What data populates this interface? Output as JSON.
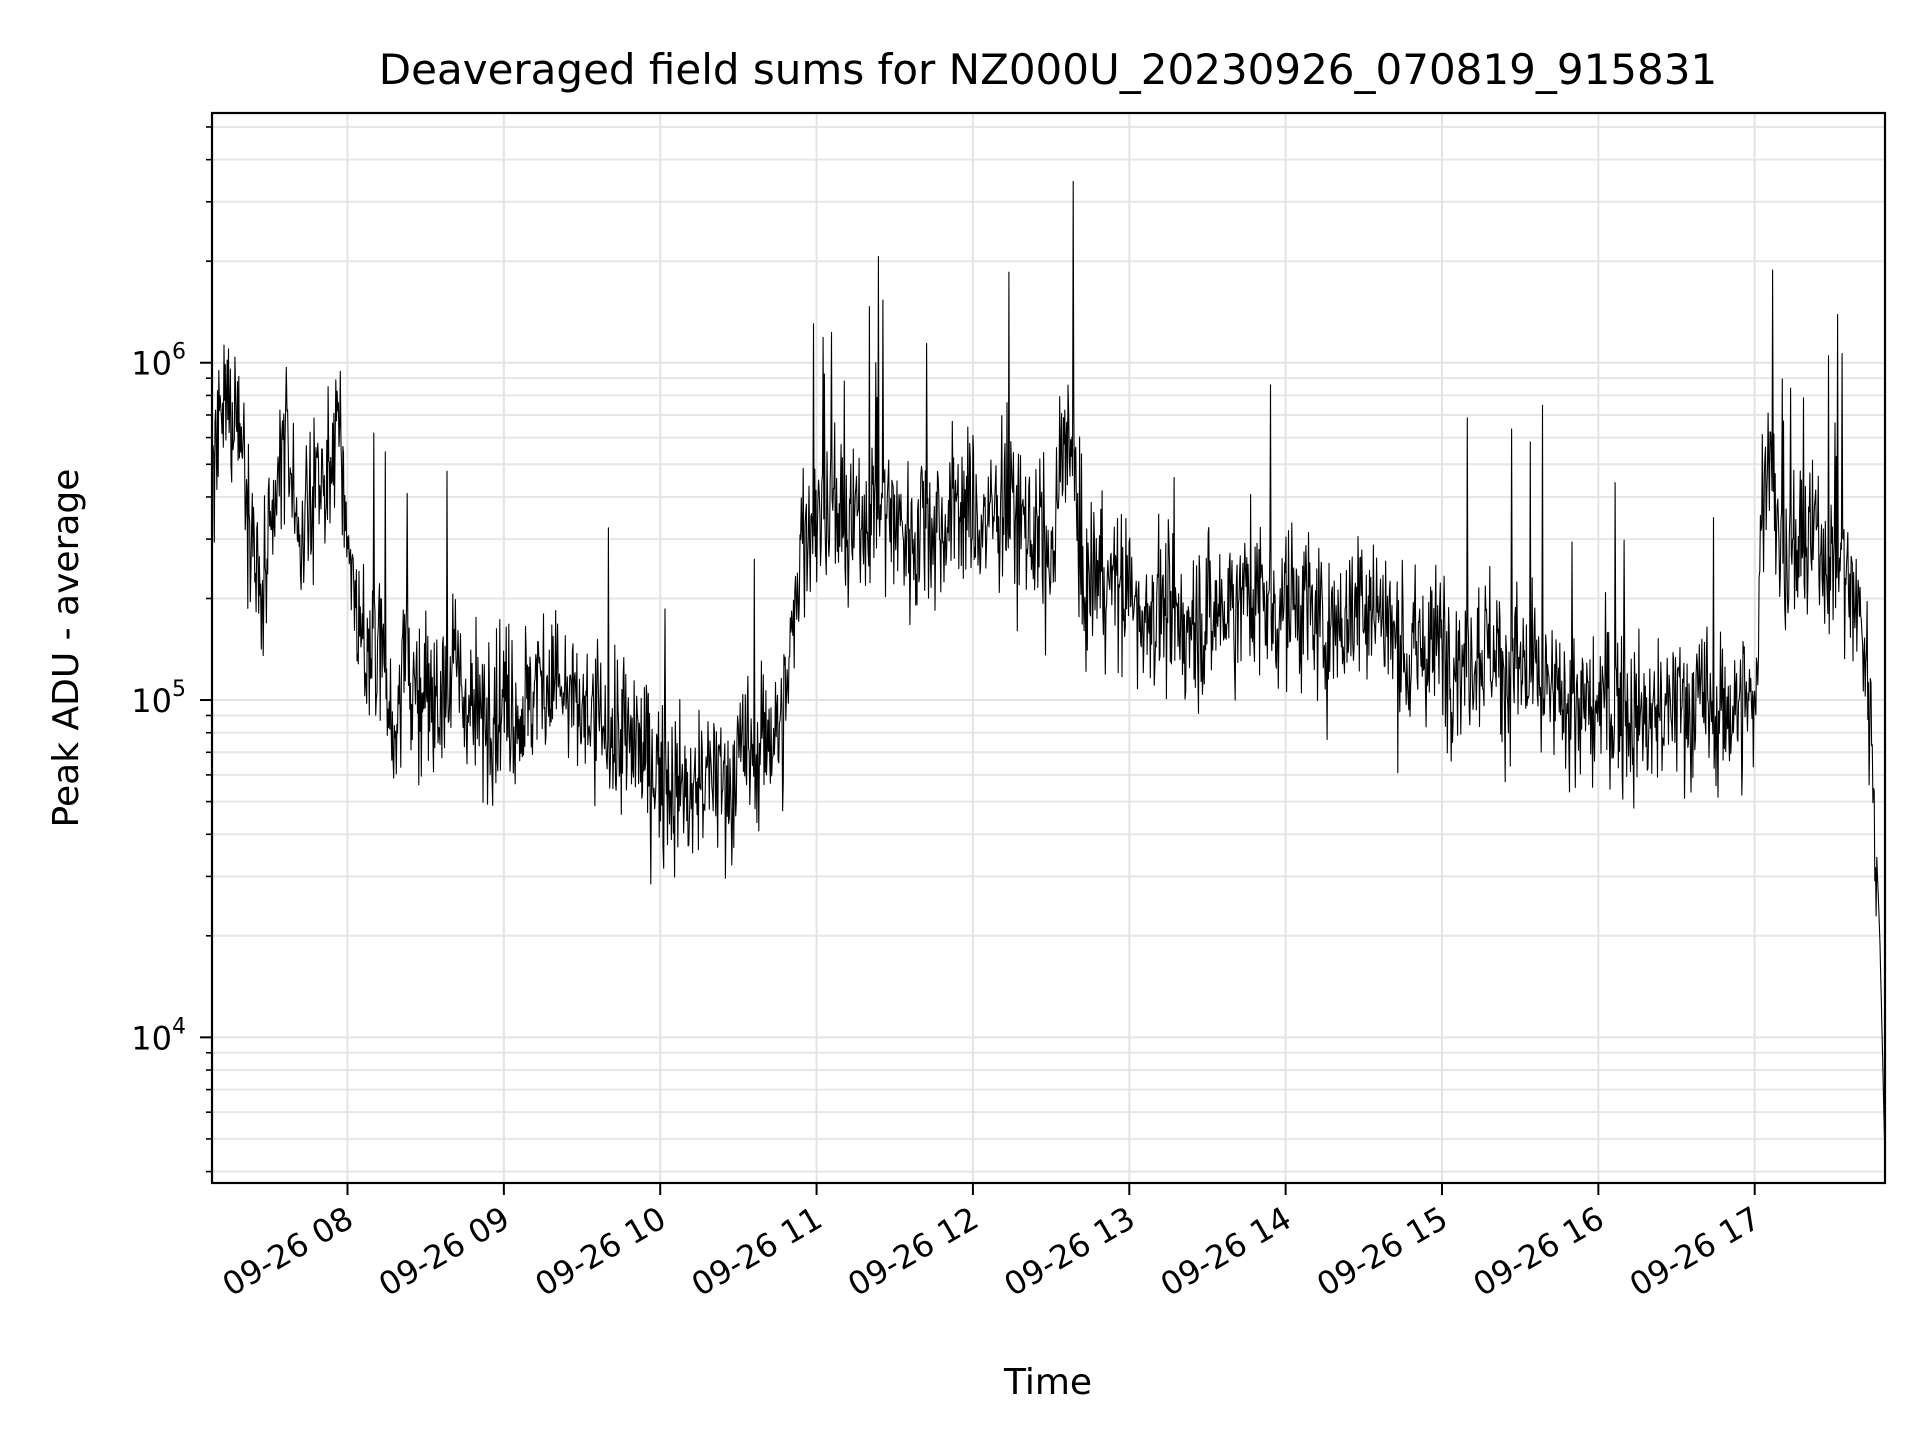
{
  "chart_data": {
    "type": "line",
    "title": "Deaveraged field sums for NZ000U_20230926_070819_915831",
    "xlabel": "Time",
    "ylabel": "Peak ADU - average",
    "yscale": "log",
    "grid": "on (major and minor)",
    "xlim": [
      "09-26 07:08",
      "09-26 17:50"
    ],
    "ylim": [
      3700,
      5500000
    ],
    "x_ticks": [
      "09-26 08",
      "09-26 09",
      "09-26 10",
      "09-26 11",
      "09-26 12",
      "09-26 13",
      "09-26 14",
      "09-26 15",
      "09-26 16",
      "09-26 17"
    ],
    "x_tick_hours": [
      8,
      9,
      10,
      11,
      12,
      13,
      14,
      15,
      16,
      17
    ],
    "y_ticks": [
      {
        "base": "10",
        "exp": "4",
        "value": 10000
      },
      {
        "base": "10",
        "exp": "5",
        "value": 100000
      },
      {
        "base": "10",
        "exp": "6",
        "value": 1000000
      }
    ],
    "series": [
      {
        "color": "#000000",
        "x_hours": [
          7.14,
          7.2,
          7.25,
          7.3,
          7.35,
          7.4,
          7.45,
          7.5,
          7.55,
          7.6,
          7.65,
          7.7,
          7.75,
          7.8,
          7.85,
          7.9,
          7.95,
          8.0,
          8.05,
          8.1,
          8.15,
          8.2,
          8.25,
          8.3,
          8.35,
          8.4,
          8.45,
          8.5,
          8.6,
          8.7,
          8.8,
          8.9,
          9.0,
          9.1,
          9.2,
          9.3,
          9.4,
          9.5,
          9.6,
          9.7,
          9.8,
          9.9,
          10.0,
          10.1,
          10.2,
          10.3,
          10.4,
          10.5,
          10.6,
          10.7,
          10.8,
          10.9,
          11.0,
          11.1,
          11.2,
          11.3,
          11.4,
          11.5,
          11.6,
          11.7,
          11.8,
          11.9,
          12.0,
          12.1,
          12.2,
          12.3,
          12.4,
          12.5,
          12.55,
          12.6,
          12.65,
          12.7,
          12.8,
          12.9,
          13.0,
          13.1,
          13.2,
          13.3,
          13.4,
          13.5,
          13.6,
          13.7,
          13.8,
          13.9,
          14.0,
          14.1,
          14.2,
          14.3,
          14.4,
          14.5,
          14.6,
          14.7,
          14.8,
          14.9,
          15.0,
          15.1,
          15.2,
          15.3,
          15.4,
          15.5,
          15.6,
          15.7,
          15.8,
          15.9,
          16.0,
          16.1,
          16.2,
          16.3,
          16.4,
          16.5,
          16.6,
          16.7,
          16.8,
          16.9,
          17.0,
          17.05,
          17.1,
          17.15,
          17.2,
          17.3,
          17.4,
          17.5,
          17.55,
          17.6,
          17.65,
          17.7,
          17.75,
          17.8,
          17.83
        ],
        "values": [
          450000,
          650000,
          800000,
          700000,
          500000,
          300000,
          180000,
          250000,
          400000,
          600000,
          450000,
          300000,
          350000,
          500000,
          400000,
          550000,
          600000,
          300000,
          200000,
          150000,
          120000,
          180000,
          100000,
          80000,
          150000,
          120000,
          90000,
          100000,
          110000,
          120000,
          90000,
          95000,
          100000,
          90000,
          110000,
          120000,
          100000,
          90000,
          85000,
          80000,
          75000,
          70000,
          60000,
          55000,
          50000,
          60000,
          55000,
          65000,
          70000,
          80000,
          90000,
          300000,
          350000,
          380000,
          300000,
          350000,
          400000,
          350000,
          300000,
          350000,
          320000,
          380000,
          350000,
          330000,
          400000,
          350000,
          300000,
          250000,
          400000,
          700000,
          500000,
          200000,
          250000,
          220000,
          200000,
          180000,
          200000,
          150000,
          180000,
          170000,
          190000,
          200000,
          220000,
          180000,
          200000,
          190000,
          170000,
          160000,
          180000,
          200000,
          190000,
          150000,
          130000,
          140000,
          150000,
          130000,
          140000,
          150000,
          120000,
          130000,
          110000,
          100000,
          100000,
          90000,
          95000,
          100000,
          90000,
          85000,
          90000,
          95000,
          100000,
          95000,
          90000,
          100000,
          90000,
          400000,
          600000,
          300000,
          250000,
          280000,
          300000,
          250000,
          280000,
          220000,
          200000,
          150000,
          80000,
          20000,
          5000
        ]
      }
    ]
  }
}
